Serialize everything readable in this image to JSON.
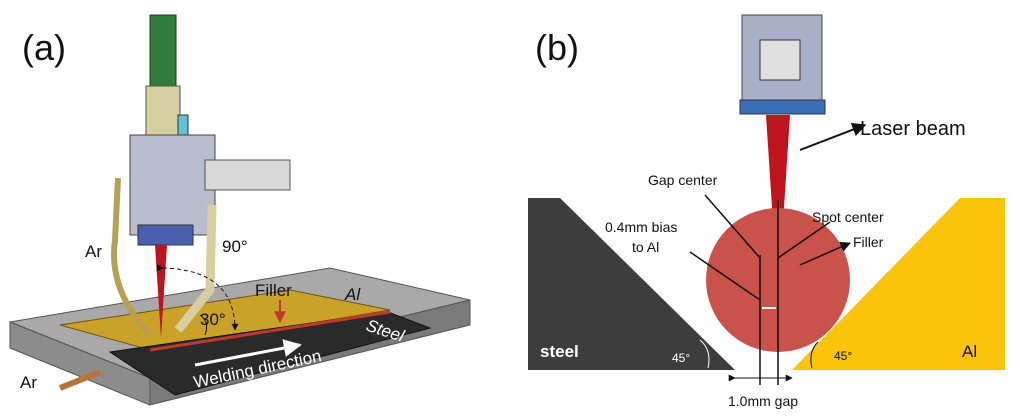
{
  "panels": {
    "a": {
      "label": "(a)",
      "ar_top": "Ar",
      "ar_bottom": "Ar",
      "angle_90": "90°",
      "filler": "Filler",
      "al": "Al",
      "angle_30": "30°",
      "steel": "Steel",
      "direction": "Welding direction"
    },
    "b": {
      "label": "(b)",
      "laser_beam": "Laser beam",
      "gap_center": "Gap center",
      "spot_center": "Spot center",
      "bias_line1": "0.4mm bias",
      "bias_line2": "to Al",
      "filler": "Filler",
      "steel": "steel",
      "angle_left": "45°",
      "angle_right": "45°",
      "al": "Al",
      "gap": "1.0mm gap"
    }
  }
}
